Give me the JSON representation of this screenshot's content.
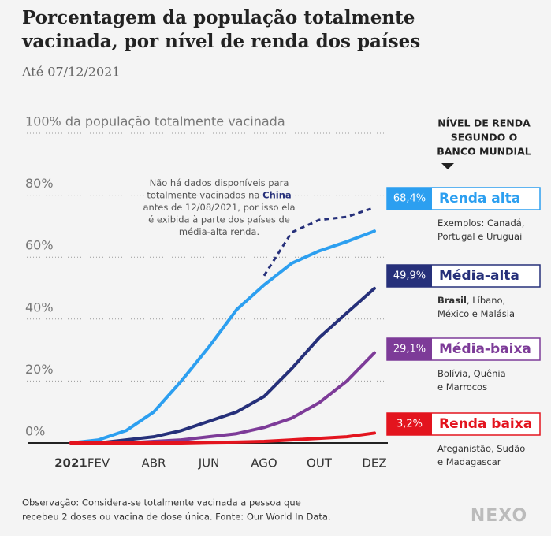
{
  "chart_data": {
    "type": "line",
    "title": [
      "Porcentagem da população totalmente",
      "vacinada, por nível de renda dos países"
    ],
    "subtitle": "Até 07/12/2021",
    "categories": [
      "2021",
      "FEV",
      null,
      "ABR",
      null,
      "JUN",
      null,
      "AGO",
      null,
      "OUT",
      null,
      "DEZ"
    ],
    "ylim": [
      0,
      100
    ],
    "yticks": [
      {
        "value": 0,
        "label": "0%"
      },
      {
        "value": 20,
        "label": "20%"
      },
      {
        "value": 40,
        "label": "40%"
      },
      {
        "value": 60,
        "label": "60%"
      },
      {
        "value": 80,
        "label": "80%"
      },
      {
        "value": 100,
        "label": "100% da população totalmente vacinada"
      }
    ],
    "grid": true,
    "legend_title": [
      "NÍVEL DE RENDA",
      "SEGUNDO O",
      "BANCO MUNDIAL"
    ],
    "series": [
      {
        "name": "Renda alta",
        "color": "#2c9ff0",
        "values": [
          0,
          1,
          4,
          10,
          20,
          31,
          43,
          51,
          58,
          62,
          65,
          68.4
        ],
        "value_labels": [
          null,
          null,
          null,
          null,
          null,
          null,
          null,
          null,
          null,
          null,
          null,
          "68,4%"
        ],
        "note_lines": [
          "Exemplos: Canadá,",
          "Portugal e Uruguai"
        ]
      },
      {
        "name": "Média-alta",
        "color": "#26307a",
        "values": [
          0,
          0,
          1,
          2,
          4,
          7,
          10,
          15,
          24,
          34,
          42,
          49.9
        ],
        "value_labels": [
          null,
          null,
          null,
          null,
          null,
          null,
          null,
          null,
          null,
          null,
          null,
          "49,9%"
        ],
        "note_bold": "Brasil",
        "note_lines": [
          ", Líbano,",
          "México e Malásia"
        ]
      },
      {
        "name": "Média-baixa",
        "color": "#7d3b98",
        "values": [
          0,
          0,
          0,
          0.5,
          1,
          2,
          3,
          5,
          8,
          13,
          20,
          29.1
        ],
        "value_labels": [
          null,
          null,
          null,
          null,
          null,
          null,
          null,
          null,
          null,
          null,
          null,
          "29,1%"
        ],
        "note_lines": [
          "Bolívia, Quênia",
          "e Marrocos"
        ]
      },
      {
        "name": "Renda baixa",
        "color": "#e3141e",
        "values": [
          0,
          0,
          0,
          0,
          0,
          0.2,
          0.3,
          0.5,
          1,
          1.5,
          2,
          3.2
        ],
        "value_labels": [
          null,
          null,
          null,
          null,
          null,
          null,
          null,
          null,
          null,
          null,
          null,
          "3,2%"
        ],
        "note_lines": [
          "Afeganistão, Sudão",
          "e Madagascar"
        ]
      },
      {
        "color": "#26307a",
        "dashed": true,
        "values": [
          null,
          null,
          null,
          null,
          null,
          null,
          null,
          54,
          68,
          72,
          73,
          76
        ]
      }
    ],
    "annotation": [
      "Não há dados disponíveis para",
      "totalmente vacinados na ",
      "antes de 12/08/2021, por isso ela",
      "é exibida à parte dos países de",
      "média-alta renda."
    ],
    "annotation_highlight": "China",
    "footnote": [
      "Observação: Considera-se totalmente vacinada a pessoa que",
      "recebeu 2 doses ou vacina de dose única. Fonte: Our World In Data."
    ],
    "logo": "NEXO"
  }
}
